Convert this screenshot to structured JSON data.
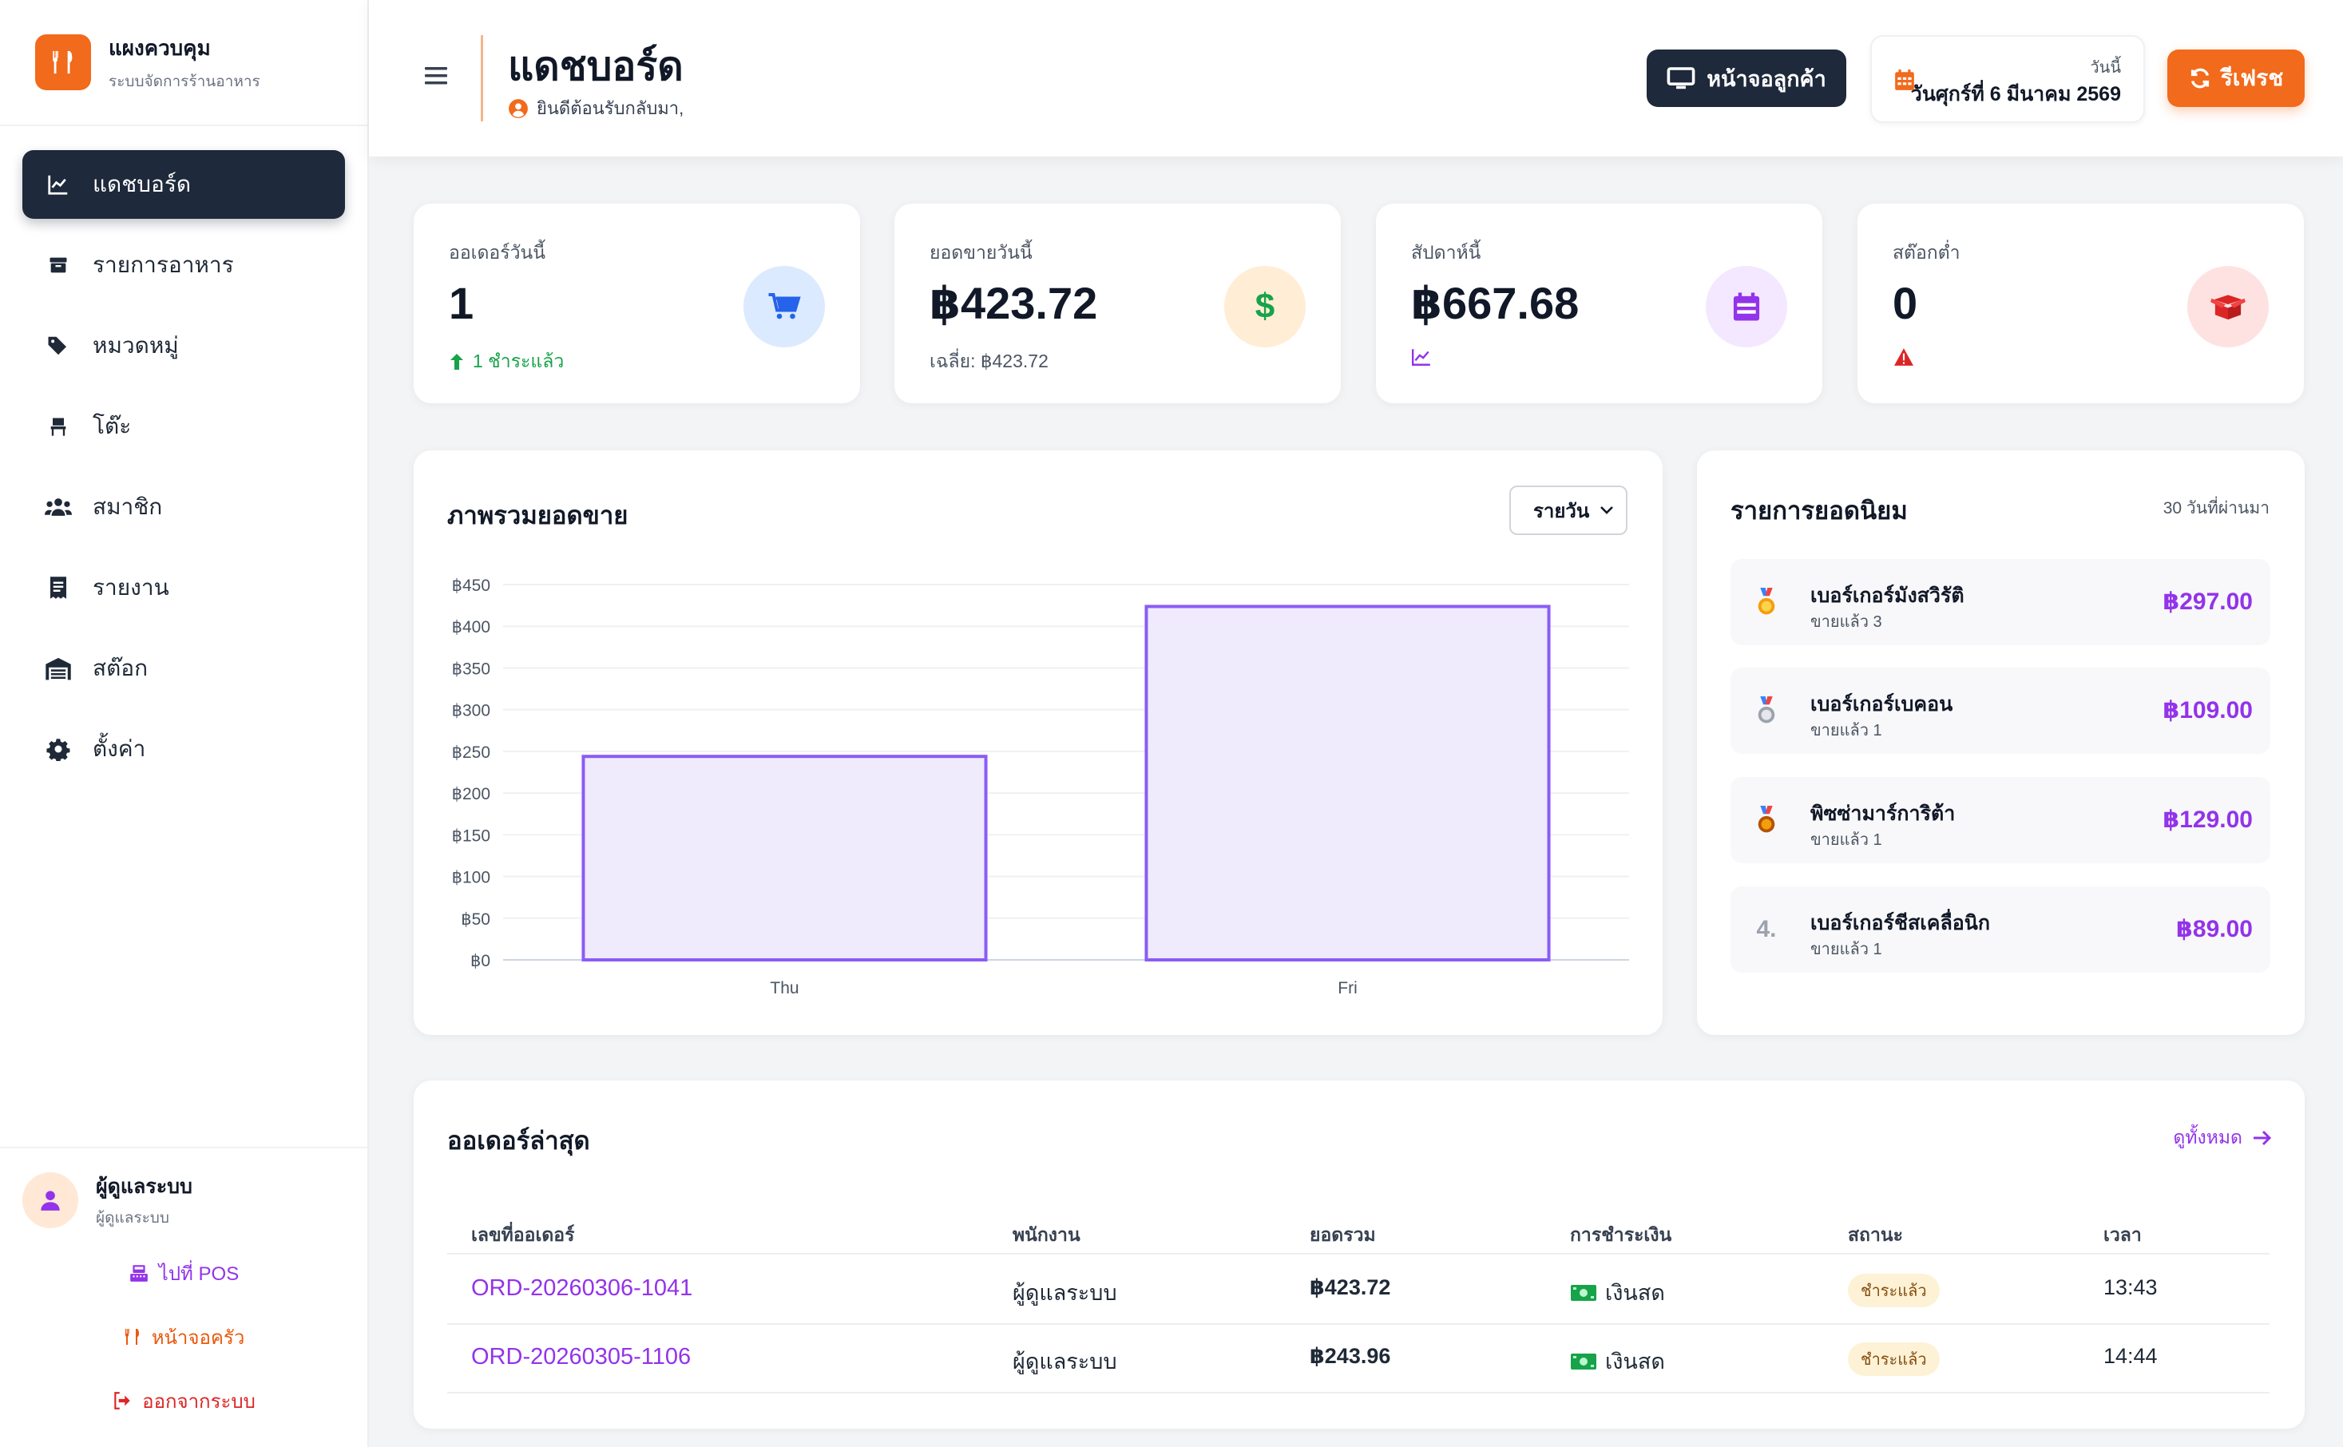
{
  "app": {
    "title": "แผงควบคุม",
    "subtitle": "ระบบจัดการร้านอาหาร"
  },
  "sidebar": {
    "items": [
      {
        "label": "แดชบอร์ด",
        "icon": "chart-line-icon",
        "active": true
      },
      {
        "label": "รายการอาหาร",
        "icon": "box-icon"
      },
      {
        "label": "หมวดหมู่",
        "icon": "tags-icon"
      },
      {
        "label": "โต๊ะ",
        "icon": "chair-icon"
      },
      {
        "label": "สมาชิก",
        "icon": "users-icon"
      },
      {
        "label": "รายงาน",
        "icon": "receipt-icon"
      },
      {
        "label": "สต๊อก",
        "icon": "warehouse-icon"
      },
      {
        "label": "ตั้งค่า",
        "icon": "gear-icon"
      }
    ],
    "user": {
      "name": "ผู้ดูแลระบบ",
      "role": "ผู้ดูแลระบบ"
    },
    "links": {
      "pos": "ไปที่ POS",
      "kitchen": "หน้าจอครัว",
      "logout": "ออกจากระบบ"
    }
  },
  "header": {
    "title": "แดชบอร์ด",
    "welcome": "ยินดีต้อนรับกลับมา,",
    "customer_screen": "หน้าจอลูกค้า",
    "date_label": "วันนี้",
    "date_value": "วันศุกร์ที่ 6 มีนาคม 2569",
    "refresh": "รีเฟรช"
  },
  "stats": {
    "orders": {
      "label": "ออเดอร์วันนี้",
      "value": "1",
      "sub": "1 ชำระแล้ว"
    },
    "sales": {
      "label": "ยอดขายวันนี้",
      "value": "฿423.72",
      "sub": "เฉลี่ย: ฿423.72"
    },
    "week": {
      "label": "สัปดาห์นี้",
      "value": "฿667.68"
    },
    "low_stock": {
      "label": "สต๊อกต่ำ",
      "value": "0"
    }
  },
  "colors": {
    "accent": "#f26a1b",
    "dark": "#1e293b",
    "purple": "#9333ea",
    "green": "#16a34a",
    "red": "#dc2626"
  },
  "sales_chart": {
    "title": "ภาพรวมยอดขาย",
    "period": "รายวัน"
  },
  "chart_data": {
    "type": "bar",
    "categories": [
      "Thu",
      "Fri"
    ],
    "values": [
      243.96,
      423.72
    ],
    "ylim": [
      0,
      450
    ],
    "yticks": [
      0,
      50,
      100,
      150,
      200,
      250,
      300,
      350,
      400,
      450
    ],
    "ytick_labels": [
      "฿0",
      "฿50",
      "฿100",
      "฿150",
      "฿200",
      "฿250",
      "฿300",
      "฿350",
      "฿400",
      "฿450"
    ],
    "grid": true,
    "xlabel": "",
    "ylabel": ""
  },
  "popular": {
    "title": "รายการยอดนิยม",
    "caption": "30 วันที่ผ่านมา",
    "items": [
      {
        "rank": "1",
        "name": "เบอร์เกอร์มังสวิรัติ",
        "sold": "ขายแล้ว 3",
        "price": "฿297.00"
      },
      {
        "rank": "2",
        "name": "เบอร์เกอร์เบคอน",
        "sold": "ขายแล้ว 1",
        "price": "฿109.00"
      },
      {
        "rank": "3",
        "name": "พิซซ่ามาร์การิต้า",
        "sold": "ขายแล้ว 1",
        "price": "฿129.00"
      },
      {
        "rank": "4.",
        "name": "เบอร์เกอร์ชีสเคลื่อนิก",
        "sold": "ขายแล้ว 1",
        "price": "฿89.00"
      }
    ]
  },
  "orders": {
    "title": "ออเดอร์ล่าสุด",
    "view_all": "ดูทั้งหมด",
    "headers": [
      "เลขที่ออเดอร์",
      "พนักงาน",
      "ยอดรวม",
      "การชำระเงิน",
      "สถานะ",
      "เวลา"
    ],
    "rows": [
      {
        "id": "ORD-20260306-1041",
        "staff": "ผู้ดูแลระบบ",
        "total": "฿423.72",
        "payment": "เงินสด",
        "status": "ชำระแล้ว",
        "time": "13:43"
      },
      {
        "id": "ORD-20260305-1106",
        "staff": "ผู้ดูแลระบบ",
        "total": "฿243.96",
        "payment": "เงินสด",
        "status": "ชำระแล้ว",
        "time": "14:44"
      }
    ]
  }
}
